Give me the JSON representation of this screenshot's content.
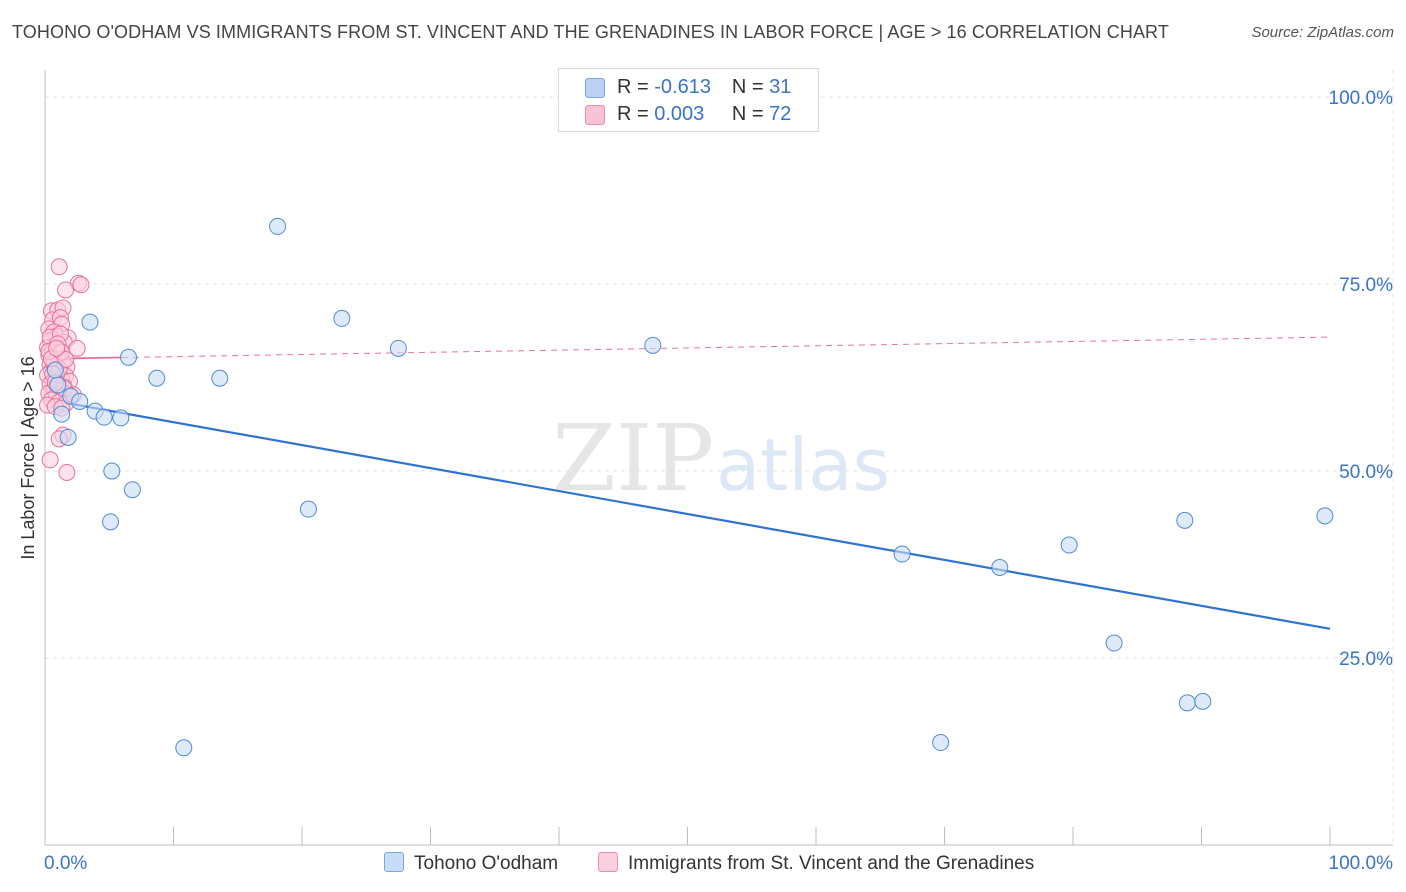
{
  "title": "TOHONO O'ODHAM VS IMMIGRANTS FROM ST. VINCENT AND THE GRENADINES IN LABOR FORCE | AGE > 16 CORRELATION CHART",
  "source": "Source: ZipAtlas.com",
  "watermark": {
    "zip": "ZIP",
    "atlas": "atlas"
  },
  "legend": {
    "r_label": "R =",
    "n_label": "N =",
    "rows": [
      {
        "r": "-0.613",
        "n": "31",
        "color": "#b9d2f2",
        "border": "#7aa6e0"
      },
      {
        "r": "0.003",
        "n": "72",
        "color": "#f9c3d4",
        "border": "#ee8fb0"
      }
    ]
  },
  "bottom_legend": [
    "Tohono O'odham",
    "Immigrants from St. Vincent and the Grenadines"
  ],
  "chart_data": {
    "type": "scatter",
    "ylabel": "In Labor Force | Age > 16",
    "xlim": [
      0,
      100
    ],
    "ylim": [
      0,
      100
    ],
    "x_tick_labels": [
      "0.0%",
      "100.0%"
    ],
    "y_tick_labels": [
      "25.0%",
      "50.0%",
      "75.0%",
      "100.0%"
    ],
    "y_ticks": [
      25,
      50,
      75,
      100
    ],
    "grid": true,
    "series": [
      {
        "name": "Tohono O'odham",
        "color": "#4f8ad8",
        "fill": "#c9dcf5",
        "points": [
          [
            18.1,
            82.7
          ],
          [
            3.5,
            69.9
          ],
          [
            23.1,
            70.4
          ],
          [
            27.5,
            66.4
          ],
          [
            47.3,
            66.8
          ],
          [
            6.5,
            65.2
          ],
          [
            8.7,
            62.4
          ],
          [
            13.6,
            62.4
          ],
          [
            2.0,
            60.0
          ],
          [
            2.7,
            59.3
          ],
          [
            3.9,
            58.0
          ],
          [
            4.6,
            57.2
          ],
          [
            5.9,
            57.1
          ],
          [
            1.3,
            57.6
          ],
          [
            1.8,
            54.5
          ],
          [
            5.2,
            50.0
          ],
          [
            6.8,
            47.5
          ],
          [
            5.1,
            43.2
          ],
          [
            20.5,
            44.9
          ],
          [
            66.7,
            38.9
          ],
          [
            74.3,
            37.1
          ],
          [
            79.7,
            40.1
          ],
          [
            88.7,
            43.4
          ],
          [
            99.6,
            44.0
          ],
          [
            83.2,
            27.0
          ],
          [
            88.9,
            19.0
          ],
          [
            90.1,
            19.2
          ],
          [
            10.8,
            13.0
          ],
          [
            69.7,
            13.7
          ],
          [
            1.0,
            61.5
          ],
          [
            0.8,
            63.5
          ]
        ],
        "trend": {
          "x": [
            0,
            100
          ],
          "y": [
            59.6,
            28.9
          ]
        }
      },
      {
        "name": "Immigrants from St. Vincent and the Grenadines",
        "color": "#e8729a",
        "fill": "#fbd0de",
        "points": [
          [
            1.1,
            77.3
          ],
          [
            2.6,
            75.1
          ],
          [
            1.6,
            74.2
          ],
          [
            2.8,
            74.9
          ],
          [
            0.5,
            71.4
          ],
          [
            1.0,
            71.5
          ],
          [
            1.4,
            71.8
          ],
          [
            0.6,
            70.2
          ],
          [
            1.2,
            70.5
          ],
          [
            1.3,
            69.6
          ],
          [
            0.3,
            69.0
          ],
          [
            0.7,
            68.6
          ],
          [
            0.9,
            68.0
          ],
          [
            1.8,
            67.8
          ],
          [
            0.4,
            67.4
          ],
          [
            1.5,
            67.2
          ],
          [
            0.2,
            66.5
          ],
          [
            0.8,
            66.8
          ],
          [
            2.5,
            66.4
          ],
          [
            0.6,
            65.9
          ],
          [
            1.2,
            66.0
          ],
          [
            0.3,
            65.5
          ],
          [
            1.0,
            65.2
          ],
          [
            0.7,
            64.8
          ],
          [
            1.4,
            64.6
          ],
          [
            0.4,
            64.2
          ],
          [
            0.9,
            64.0
          ],
          [
            1.7,
            63.9
          ],
          [
            0.5,
            63.4
          ],
          [
            1.1,
            63.2
          ],
          [
            0.2,
            62.8
          ],
          [
            1.6,
            62.7
          ],
          [
            0.8,
            62.4
          ],
          [
            1.3,
            62.2
          ],
          [
            0.6,
            61.9
          ],
          [
            1.9,
            62.0
          ],
          [
            0.4,
            61.6
          ],
          [
            1.0,
            61.4
          ],
          [
            1.5,
            61.2
          ],
          [
            0.7,
            60.9
          ],
          [
            1.2,
            60.7
          ],
          [
            0.3,
            60.4
          ],
          [
            1.8,
            60.3
          ],
          [
            0.9,
            60.1
          ],
          [
            1.4,
            59.8
          ],
          [
            0.5,
            59.5
          ],
          [
            1.1,
            59.2
          ],
          [
            1.6,
            59.0
          ],
          [
            0.2,
            58.8
          ],
          [
            0.8,
            58.6
          ],
          [
            1.3,
            58.4
          ],
          [
            0.6,
            66.1
          ],
          [
            1.0,
            65.7
          ],
          [
            0.4,
            67.9
          ],
          [
            1.2,
            68.3
          ],
          [
            0.9,
            62.9
          ],
          [
            1.5,
            61.0
          ],
          [
            0.7,
            64.4
          ],
          [
            1.1,
            63.6
          ],
          [
            0.3,
            66.0
          ],
          [
            1.4,
            54.8
          ],
          [
            1.1,
            54.3
          ],
          [
            0.4,
            51.5
          ],
          [
            1.7,
            49.8
          ],
          [
            2.2,
            60.2
          ],
          [
            0.5,
            65.0
          ],
          [
            1.0,
            67.0
          ],
          [
            0.6,
            63.0
          ],
          [
            1.3,
            65.9
          ],
          [
            0.8,
            61.8
          ],
          [
            1.6,
            64.9
          ],
          [
            0.9,
            66.4
          ]
        ],
        "trend": {
          "x": [
            0,
            100
          ],
          "y": [
            65.0,
            67.9
          ]
        }
      }
    ]
  }
}
